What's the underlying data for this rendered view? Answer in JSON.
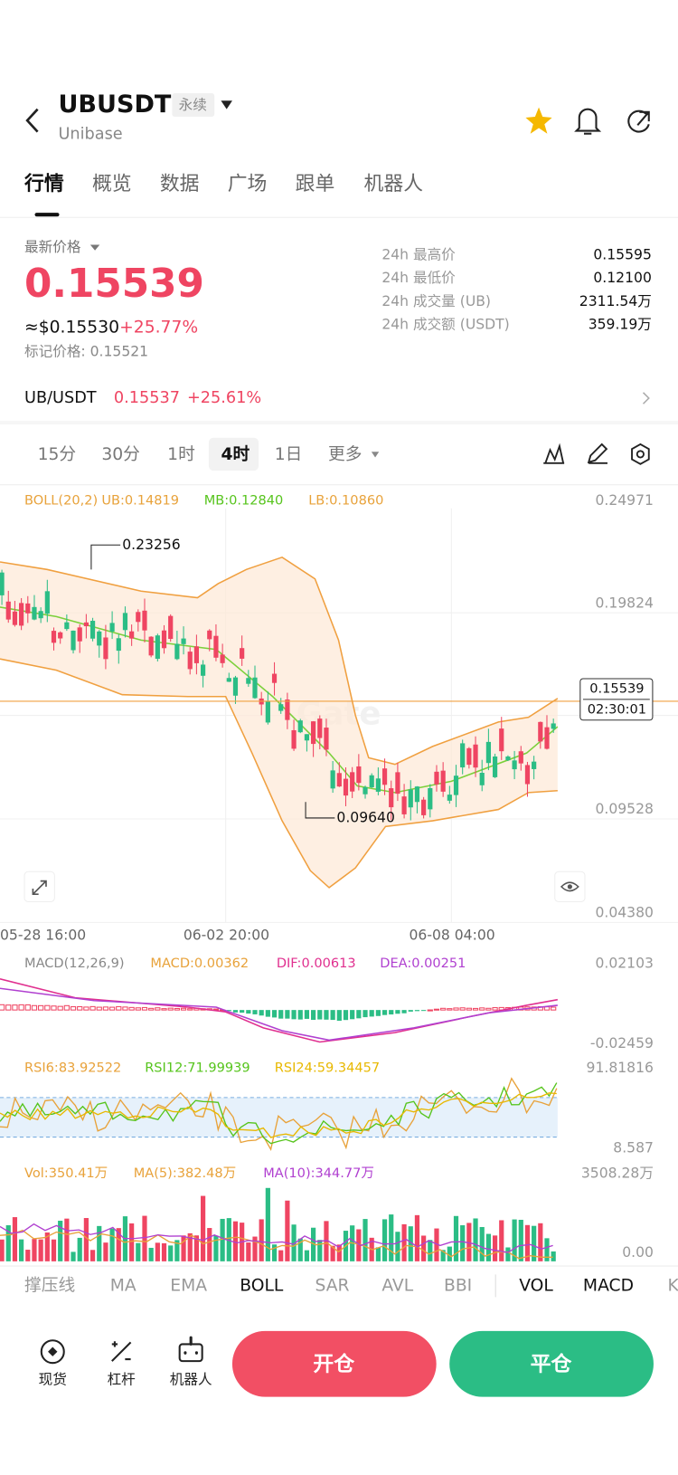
{
  "header": {
    "symbol": "UBUSDT",
    "tag": "永续",
    "name": "Unibase"
  },
  "tabs": [
    "行情",
    "概览",
    "数据",
    "广场",
    "跟单",
    "机器人"
  ],
  "price": {
    "label": "最新价格",
    "last": "0.15539",
    "usd": "≈$0.15530",
    "change": "+25.77%",
    "mark": "标记价格: 0.15521"
  },
  "stats": [
    {
      "label": "24h 最高价",
      "value": "0.15595"
    },
    {
      "label": "24h 最低价",
      "value": "0.12100"
    },
    {
      "label": "24h 成交量 (UB)",
      "value": "2311.54万"
    },
    {
      "label": "24h 成交额 (USDT)",
      "value": "359.19万"
    }
  ],
  "pair": {
    "name": "UB/USDT",
    "price": "0.15537",
    "change": "+25.61%"
  },
  "intervals": [
    "15分",
    "30分",
    "1时",
    "4时",
    "1日",
    "更多"
  ],
  "chart": {
    "boll_legend": [
      "BOLL(20,2)",
      "UB:0.14819",
      "MB:0.12840",
      "LB:0.10860"
    ],
    "y_labels": [
      "0.24971",
      "0.19824",
      "0.09528",
      "0.04380"
    ],
    "price_tag": "0.15539",
    "time_tag": "02:30:01",
    "annotations": [
      "0.23256",
      "0.09640"
    ],
    "x_labels": [
      "05-28 16:00",
      "06-02 20:00",
      "06-08 04:00"
    ],
    "macd_legend": [
      "MACD(12,26,9)",
      "MACD:0.00362",
      "DIF:0.00613",
      "DEA:0.00251"
    ],
    "macd_y": [
      "0.02103",
      "-0.02459"
    ],
    "rsi_legend": [
      "RSI6:83.92522",
      "RSI12:71.99939",
      "RSI24:59.34457"
    ],
    "rsi_y": [
      "91.81816",
      "8.587"
    ],
    "vol_legend": [
      "Vol:350.41万",
      "MA(5):382.48万",
      "MA(10):344.77万"
    ],
    "vol_y": [
      "3508.28万",
      "0.00"
    ]
  },
  "indicators": [
    "撑压线",
    "MA",
    "EMA",
    "BOLL",
    "SAR",
    "AVL",
    "BBI",
    "VOL",
    "MACD",
    "K"
  ],
  "bottom": {
    "tools": [
      "现货",
      "杠杆",
      "机器人"
    ],
    "open": "开仓",
    "close": "平仓"
  }
}
